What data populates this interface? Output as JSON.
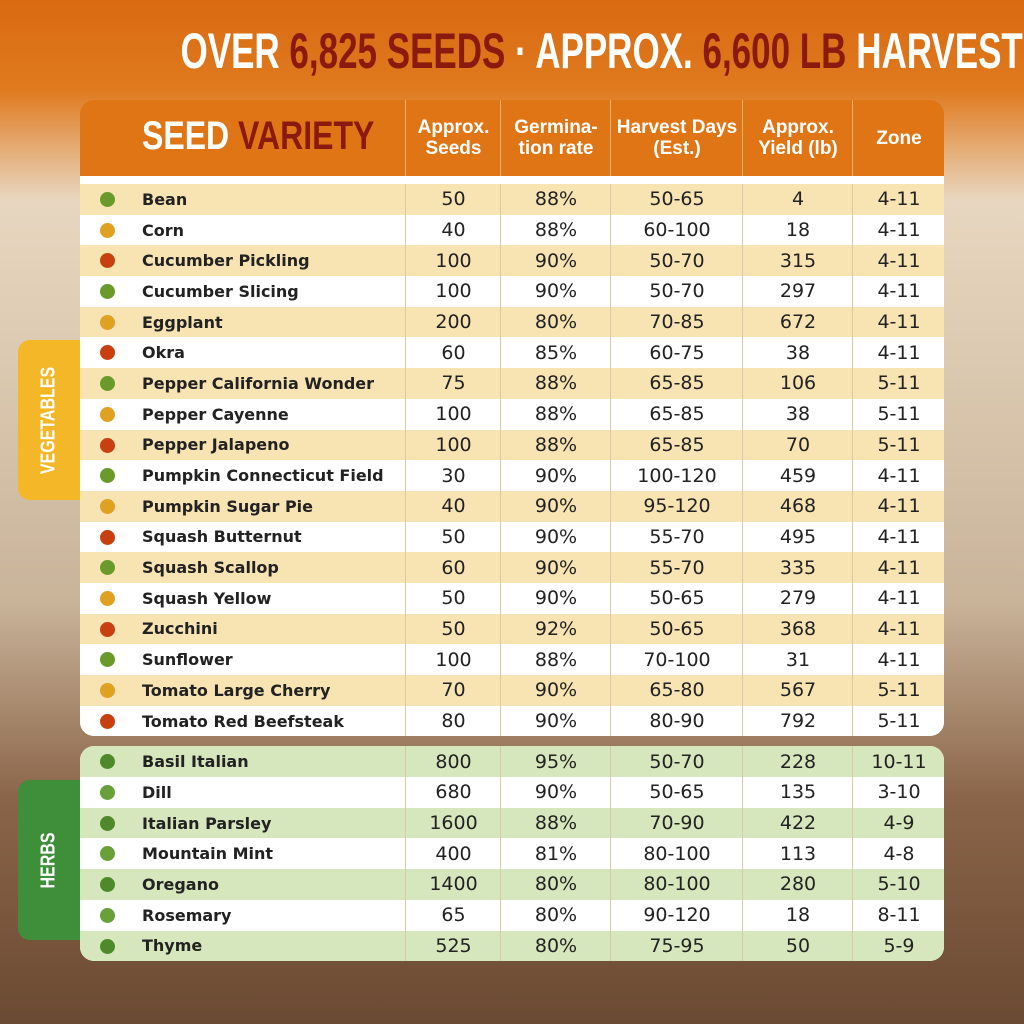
{
  "title": {
    "parts": [
      "OVER",
      "6,825 SEEDS",
      "· APPROX.",
      "6,600 LB",
      "HARVEST"
    ]
  },
  "table": {
    "header": {
      "variety": [
        "SEED",
        "VARIETY"
      ],
      "columns": [
        "Approx. Seeds",
        "Germina-tion rate",
        "Harvest Days (Est.)",
        "Approx. Yield (lb)",
        "Zone"
      ]
    },
    "groups": [
      {
        "label": "VEGETABLES",
        "rows": [
          [
            "Bean",
            "50",
            "88%",
            "50-65",
            "4",
            "4-11"
          ],
          [
            "Corn",
            "40",
            "88%",
            "60-100",
            "18",
            "4-11"
          ],
          [
            "Cucumber Pickling",
            "100",
            "90%",
            "50-70",
            "315",
            "4-11"
          ],
          [
            "Cucumber Slicing",
            "100",
            "90%",
            "50-70",
            "297",
            "4-11"
          ],
          [
            "Eggplant",
            "200",
            "80%",
            "70-85",
            "672",
            "4-11"
          ],
          [
            "Okra",
            "60",
            "85%",
            "60-75",
            "38",
            "4-11"
          ],
          [
            "Pepper California Wonder",
            "75",
            "88%",
            "65-85",
            "106",
            "5-11"
          ],
          [
            "Pepper Cayenne",
            "100",
            "88%",
            "65-85",
            "38",
            "5-11"
          ],
          [
            "Pepper Jalapeno",
            "100",
            "88%",
            "65-85",
            "70",
            "5-11"
          ],
          [
            "Pumpkin Connecticut Field",
            "30",
            "90%",
            "100-120",
            "459",
            "4-11"
          ],
          [
            "Pumpkin Sugar Pie",
            "40",
            "90%",
            "95-120",
            "468",
            "4-11"
          ],
          [
            "Squash Butternut",
            "50",
            "90%",
            "55-70",
            "495",
            "4-11"
          ],
          [
            "Squash Scallop",
            "60",
            "90%",
            "55-70",
            "335",
            "4-11"
          ],
          [
            "Squash Yellow",
            "50",
            "90%",
            "50-65",
            "279",
            "4-11"
          ],
          [
            "Zucchini",
            "50",
            "92%",
            "50-65",
            "368",
            "4-11"
          ],
          [
            "Sunflower",
            "100",
            "88%",
            "70-100",
            "31",
            "4-11"
          ],
          [
            "Tomato Large Cherry",
            "70",
            "90%",
            "65-80",
            "567",
            "5-11"
          ],
          [
            "Tomato Red Beefsteak",
            "80",
            "90%",
            "80-90",
            "792",
            "5-11"
          ]
        ]
      },
      {
        "label": "HERBS",
        "rows": [
          [
            "Basil Italian",
            "800",
            "95%",
            "50-70",
            "228",
            "10-11"
          ],
          [
            "Dill",
            "680",
            "90%",
            "50-65",
            "135",
            "3-10"
          ],
          [
            "Italian Parsley",
            "1600",
            "88%",
            "70-90",
            "422",
            "4-9"
          ],
          [
            "Mountain Mint",
            "400",
            "81%",
            "80-100",
            "113",
            "4-8"
          ],
          [
            "Oregano",
            "1400",
            "80%",
            "80-100",
            "280",
            "5-10"
          ],
          [
            "Rosemary",
            "65",
            "80%",
            "90-120",
            "18",
            "8-11"
          ],
          [
            "Thyme",
            "525",
            "80%",
            "75-95",
            "50",
            "5-9"
          ]
        ]
      }
    ]
  }
}
